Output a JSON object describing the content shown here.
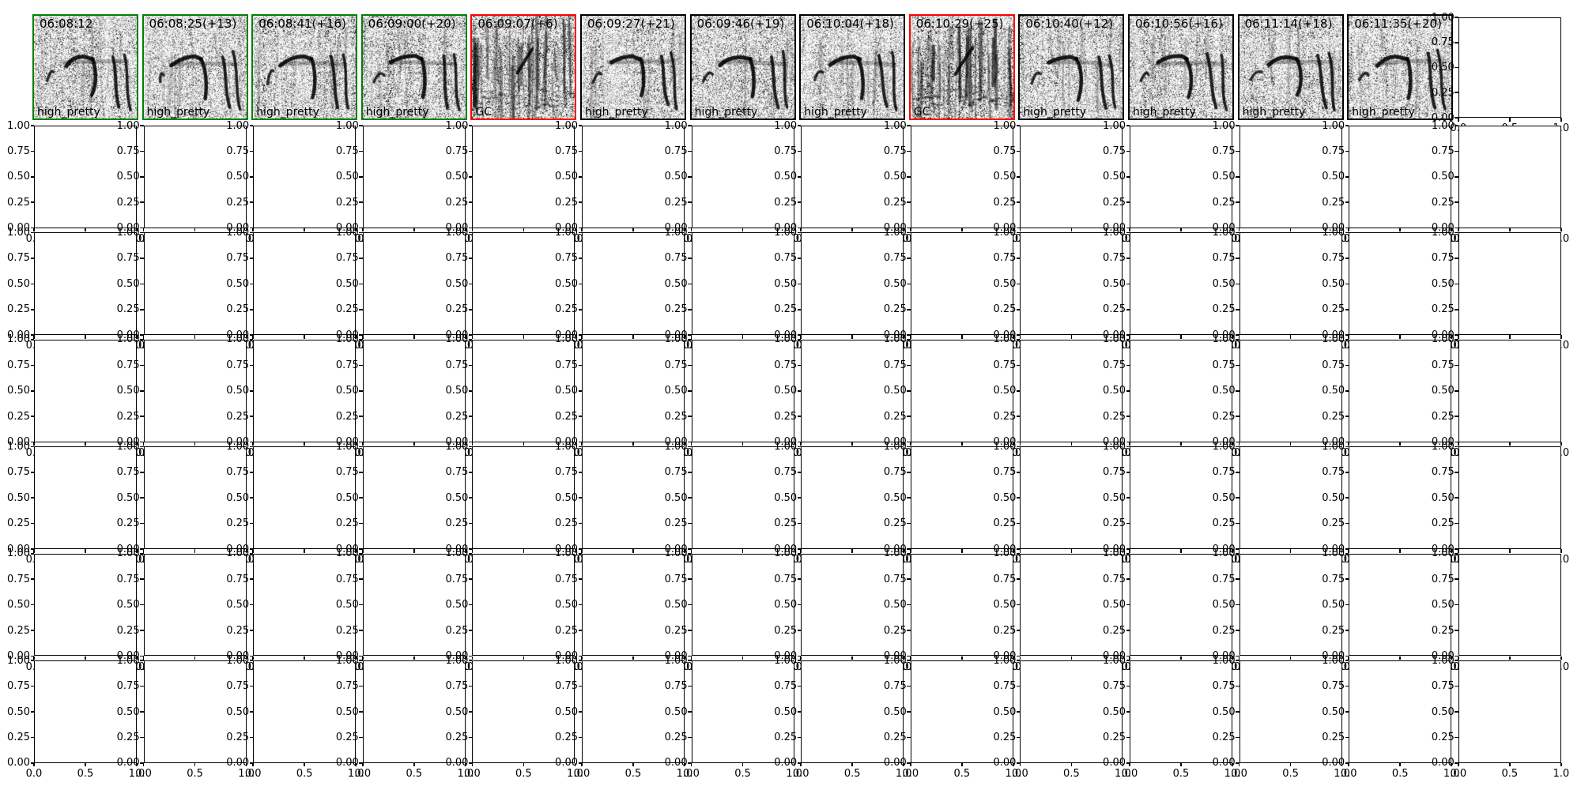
{
  "figure": {
    "background": "#ffffff",
    "ink": "#000000"
  },
  "chart_data": {
    "type": "heatmap",
    "subtype": "spectrogram-thumbnail-montage-over-empty-subplot-grid",
    "grid": {
      "rows": 7,
      "cols": 14
    },
    "image_row_index": 1,
    "panels": [
      {
        "time": "06:08:12",
        "label": "high_pretty",
        "frame": "green"
      },
      {
        "time": "06:08:25(+13)",
        "label": "high_pretty",
        "frame": "green"
      },
      {
        "time": "06:08:41(+16)",
        "label": "high_pretty",
        "frame": "green"
      },
      {
        "time": "06:09:00(+20)",
        "label": "high_pretty",
        "frame": "green"
      },
      {
        "time": "06:09:07(+6)",
        "label": "GC",
        "frame": "red"
      },
      {
        "time": "06:09:27(+21)",
        "label": "high_pretty",
        "frame": "black"
      },
      {
        "time": "06:09:46(+19)",
        "label": "high_pretty",
        "frame": "black"
      },
      {
        "time": "06:10:04(+18)",
        "label": "high_pretty",
        "frame": "black"
      },
      {
        "time": "06:10:29(+25)",
        "label": "GC",
        "frame": "red"
      },
      {
        "time": "06:10:40(+12)",
        "label": "high_pretty",
        "frame": "black"
      },
      {
        "time": "06:10:56(+16)",
        "label": "high_pretty",
        "frame": "black"
      },
      {
        "time": "06:11:14(+18)",
        "label": "high_pretty",
        "frame": "black"
      },
      {
        "time": "06:11:35(+20)",
        "label": "high_pretty",
        "frame": "black"
      }
    ],
    "axis": {
      "ylim": [
        0.0,
        1.0
      ],
      "xlim": [
        0.0,
        1.0
      ],
      "y_ticks": [
        "1.00",
        "0.75",
        "0.50",
        "0.25",
        "0.00"
      ],
      "x_ticks": [
        "0.0",
        "0.5",
        "1.0"
      ]
    },
    "frame_colors": {
      "green": "#008000",
      "red": "#ff0000",
      "black": "#000000"
    }
  }
}
